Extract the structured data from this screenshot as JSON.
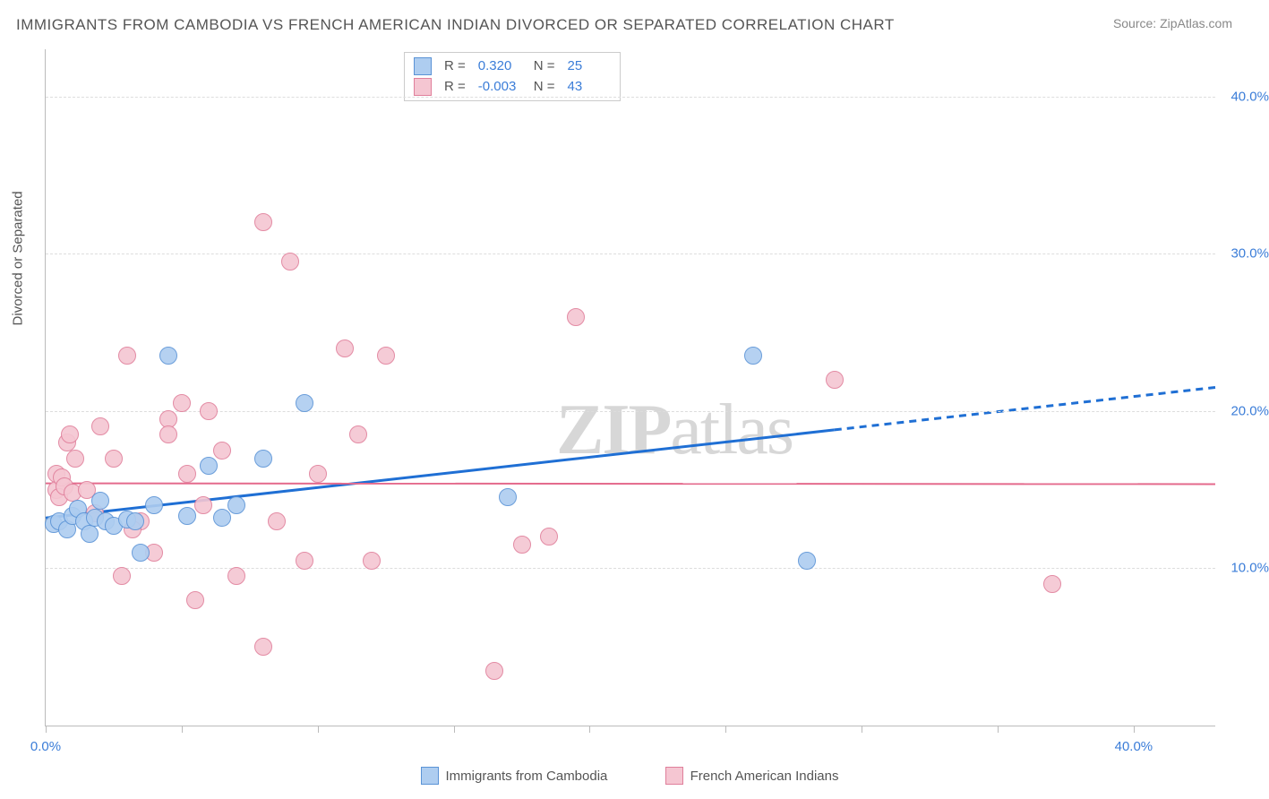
{
  "title": "IMMIGRANTS FROM CAMBODIA VS FRENCH AMERICAN INDIAN DIVORCED OR SEPARATED CORRELATION CHART",
  "source": "Source: ZipAtlas.com",
  "watermark": {
    "prefix": "ZIP",
    "suffix": "atlas"
  },
  "ylabel": "Divorced or Separated",
  "chart": {
    "type": "scatter",
    "background_color": "#ffffff",
    "grid_color": "#dddddd",
    "axis_color": "#bbbbbb",
    "tick_label_color": "#3b7dd8",
    "label_fontsize": 15,
    "marker_radius": 9,
    "xlim": [
      0,
      43
    ],
    "ylim": [
      0,
      43
    ],
    "y_ticks": [
      10,
      20,
      30,
      40
    ],
    "y_tick_labels": [
      "10.0%",
      "20.0%",
      "30.0%",
      "40.0%"
    ],
    "x_ticks": [
      0,
      5,
      10,
      15,
      20,
      25,
      30,
      35,
      40
    ],
    "x_tick_labels": {
      "start": "0.0%",
      "end": "40.0%"
    },
    "stats": [
      {
        "swatch_fill": "#aecdf0",
        "swatch_stroke": "#5a93d6",
        "r_label": "R =",
        "r_value": "0.320",
        "n_label": "N =",
        "n_value": "25"
      },
      {
        "swatch_fill": "#f5c6d2",
        "swatch_stroke": "#e07f9b",
        "r_label": "R =",
        "r_value": "-0.003",
        "n_label": "N =",
        "n_value": "43"
      }
    ],
    "series": [
      {
        "name": "Immigrants from Cambodia",
        "fill": "#aecdf0",
        "stroke": "#5a93d6",
        "trend_color": "#1f6fd4",
        "trend_width": 3,
        "trend": {
          "x1": 0,
          "y1": 13.2,
          "x2": 29,
          "y2": 18.8,
          "x2_dash": 43,
          "y2_dash": 21.5
        },
        "points": [
          [
            0.3,
            12.8
          ],
          [
            0.5,
            13.0
          ],
          [
            0.8,
            12.5
          ],
          [
            1.0,
            13.3
          ],
          [
            1.2,
            13.8
          ],
          [
            1.4,
            13.0
          ],
          [
            1.6,
            12.2
          ],
          [
            1.8,
            13.2
          ],
          [
            2.0,
            14.3
          ],
          [
            2.2,
            13.0
          ],
          [
            2.5,
            12.7
          ],
          [
            3.0,
            13.1
          ],
          [
            3.3,
            13.0
          ],
          [
            3.5,
            11.0
          ],
          [
            4.0,
            14.0
          ],
          [
            4.5,
            23.5
          ],
          [
            5.2,
            13.3
          ],
          [
            6.0,
            16.5
          ],
          [
            6.5,
            13.2
          ],
          [
            7.0,
            14.0
          ],
          [
            8.0,
            17.0
          ],
          [
            9.5,
            20.5
          ],
          [
            17.0,
            14.5
          ],
          [
            26.0,
            23.5
          ],
          [
            28.0,
            10.5
          ]
        ]
      },
      {
        "name": "French American Indians",
        "fill": "#f5c6d2",
        "stroke": "#e07f9b",
        "trend_color": "#e46a8c",
        "trend_width": 2,
        "trend": {
          "x1": 0,
          "y1": 15.4,
          "x2": 43,
          "y2": 15.35
        },
        "points": [
          [
            0.4,
            15.0
          ],
          [
            0.4,
            16.0
          ],
          [
            0.5,
            14.5
          ],
          [
            0.6,
            15.8
          ],
          [
            0.7,
            15.2
          ],
          [
            0.8,
            18.0
          ],
          [
            0.9,
            18.5
          ],
          [
            1.0,
            14.8
          ],
          [
            1.1,
            17.0
          ],
          [
            1.5,
            15.0
          ],
          [
            1.8,
            13.5
          ],
          [
            2.0,
            19.0
          ],
          [
            2.5,
            17.0
          ],
          [
            2.8,
            9.5
          ],
          [
            3.0,
            23.5
          ],
          [
            3.5,
            13.0
          ],
          [
            4.0,
            11.0
          ],
          [
            4.5,
            19.5
          ],
          [
            4.5,
            18.5
          ],
          [
            5.0,
            20.5
          ],
          [
            5.2,
            16.0
          ],
          [
            5.5,
            8.0
          ],
          [
            5.8,
            14.0
          ],
          [
            6.0,
            20.0
          ],
          [
            6.5,
            17.5
          ],
          [
            7.0,
            9.5
          ],
          [
            8.0,
            32.0
          ],
          [
            8.0,
            5.0
          ],
          [
            8.5,
            13.0
          ],
          [
            9.0,
            29.5
          ],
          [
            9.5,
            10.5
          ],
          [
            10.0,
            16.0
          ],
          [
            11.0,
            24.0
          ],
          [
            11.5,
            18.5
          ],
          [
            12.0,
            10.5
          ],
          [
            12.5,
            23.5
          ],
          [
            16.5,
            3.5
          ],
          [
            17.5,
            11.5
          ],
          [
            18.5,
            12.0
          ],
          [
            19.5,
            26.0
          ],
          [
            29.0,
            22.0
          ],
          [
            37.0,
            9.0
          ],
          [
            3.2,
            12.5
          ]
        ]
      }
    ],
    "legend_bottom": [
      {
        "swatch_fill": "#aecdf0",
        "swatch_stroke": "#5a93d6",
        "label": "Immigrants from Cambodia"
      },
      {
        "swatch_fill": "#f5c6d2",
        "swatch_stroke": "#e07f9b",
        "label": "French American Indians"
      }
    ]
  }
}
